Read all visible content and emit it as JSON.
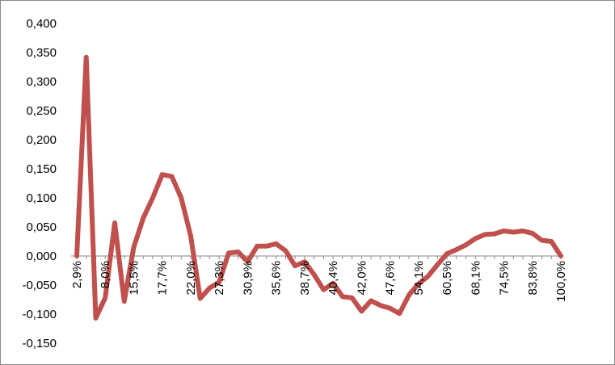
{
  "chart_data": {
    "type": "line",
    "title": "",
    "xlabel": "",
    "ylabel": "",
    "ylim": [
      -0.15,
      0.4
    ],
    "y_ticks": [
      "0,400",
      "0,350",
      "0,300",
      "0,250",
      "0,200",
      "0,150",
      "0,100",
      "0,050",
      "0,000",
      "-0,050",
      "-0,100",
      "-0,150"
    ],
    "y_tick_values": [
      0.4,
      0.35,
      0.3,
      0.25,
      0.2,
      0.15,
      0.1,
      0.05,
      0,
      -0.05,
      -0.1,
      -0.15
    ],
    "x_tick_labels": [
      {
        "index": 0,
        "label": "2,9%"
      },
      {
        "index": 3,
        "label": "8,0%"
      },
      {
        "index": 6,
        "label": "15,5%"
      },
      {
        "index": 9,
        "label": "17,7%"
      },
      {
        "index": 12,
        "label": "22,0%"
      },
      {
        "index": 15,
        "label": "27,3%"
      },
      {
        "index": 18,
        "label": "30,9%"
      },
      {
        "index": 21,
        "label": "35,6%"
      },
      {
        "index": 24,
        "label": "38,7%"
      },
      {
        "index": 27,
        "label": "40,4%"
      },
      {
        "index": 30,
        "label": "42,0%"
      },
      {
        "index": 33,
        "label": "47,6%"
      },
      {
        "index": 36,
        "label": "54,1%"
      },
      {
        "index": 39,
        "label": "60,5%"
      },
      {
        "index": 42,
        "label": "68,1%"
      },
      {
        "index": 45,
        "label": "74,5%"
      },
      {
        "index": 48,
        "label": "83,8%"
      },
      {
        "index": 51,
        "label": "100,0%"
      }
    ],
    "grid": false,
    "legend": "none",
    "series": [
      {
        "color": "#c0504d",
        "values": [
          0.0,
          0.342,
          -0.107,
          -0.072,
          0.057,
          -0.078,
          0.015,
          0.065,
          0.1,
          0.14,
          0.137,
          0.1,
          0.035,
          -0.073,
          -0.055,
          -0.045,
          0.005,
          0.007,
          -0.01,
          0.017,
          0.017,
          0.021,
          0.009,
          -0.017,
          -0.01,
          -0.032,
          -0.058,
          -0.047,
          -0.07,
          -0.072,
          -0.095,
          -0.077,
          -0.085,
          -0.09,
          -0.099,
          -0.067,
          -0.048,
          -0.035,
          -0.015,
          0.004,
          0.011,
          0.019,
          0.03,
          0.037,
          0.038,
          0.043,
          0.041,
          0.043,
          0.039,
          0.027,
          0.025,
          0.0
        ]
      }
    ]
  }
}
